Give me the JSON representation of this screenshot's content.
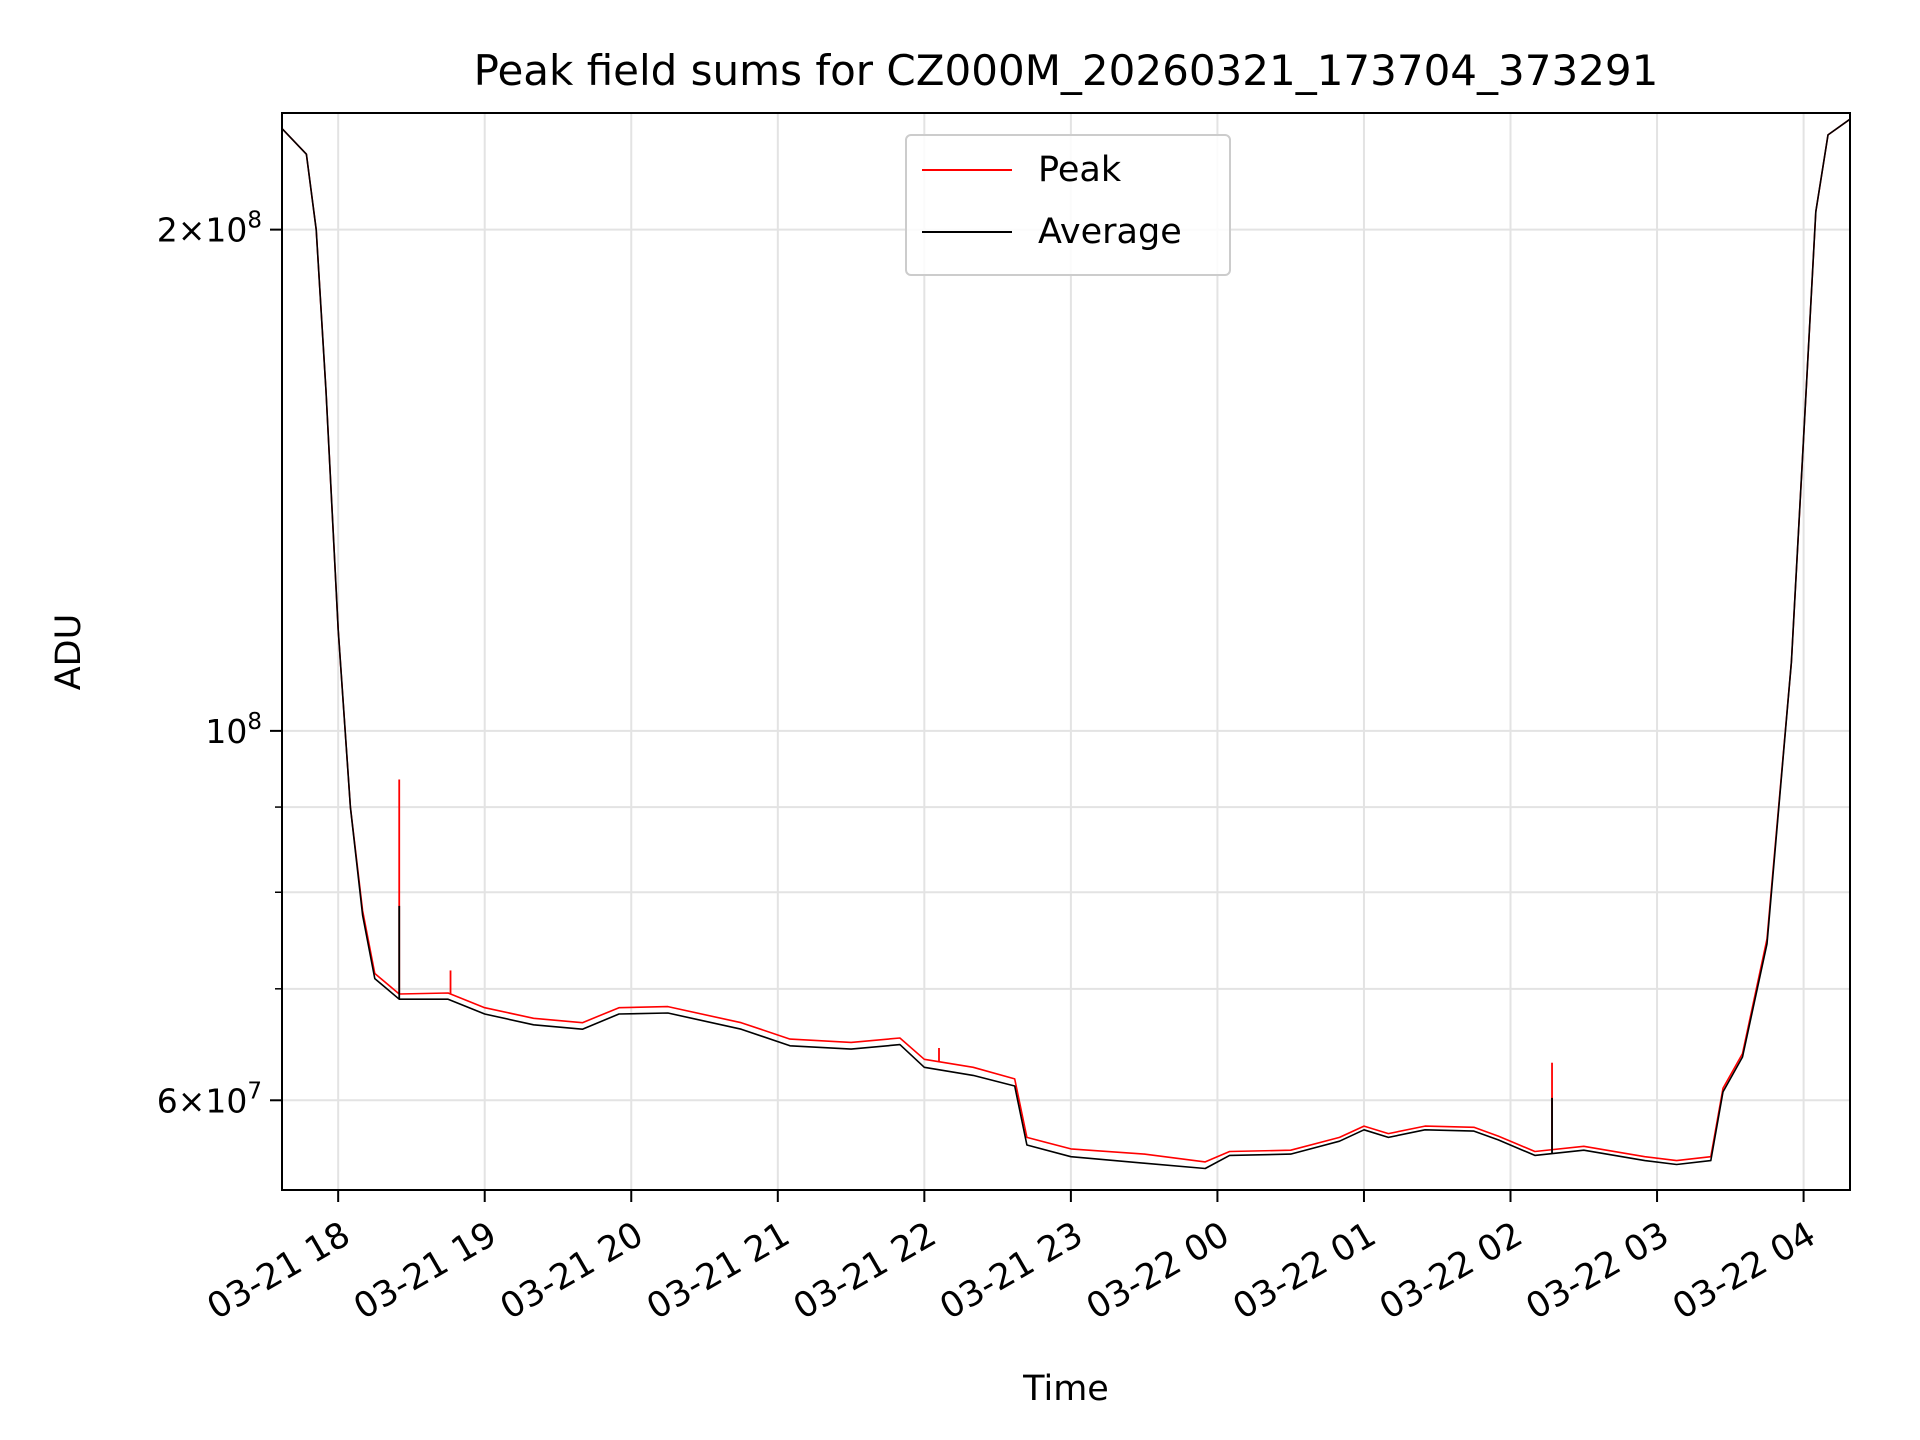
{
  "chart_data": {
    "type": "line",
    "title": "Peak field sums for CZ000M_20260321_173704_373291",
    "xlabel": "Time",
    "ylabel": "ADU",
    "y_scale": "log",
    "ylim": [
      53000000,
      235000000
    ],
    "xlim": [
      "2026-03-21 17:37",
      "2026-03-22 04:19"
    ],
    "grid": true,
    "legend_position": "upper center",
    "x_ticks": [
      {
        "t": "2026-03-21 18:00",
        "label": "03-21 18"
      },
      {
        "t": "2026-03-21 19:00",
        "label": "03-21 19"
      },
      {
        "t": "2026-03-21 20:00",
        "label": "03-21 20"
      },
      {
        "t": "2026-03-21 21:00",
        "label": "03-21 21"
      },
      {
        "t": "2026-03-21 22:00",
        "label": "03-21 22"
      },
      {
        "t": "2026-03-21 23:00",
        "label": "03-21 23"
      },
      {
        "t": "2026-03-22 00:00",
        "label": "03-22 00"
      },
      {
        "t": "2026-03-22 01:00",
        "label": "03-22 01"
      },
      {
        "t": "2026-03-22 02:00",
        "label": "03-22 02"
      },
      {
        "t": "2026-03-22 03:00",
        "label": "03-22 03"
      },
      {
        "t": "2026-03-22 04:00",
        "label": "03-22 04"
      }
    ],
    "y_ticks": [
      {
        "value": 200000000,
        "base": "2×10",
        "exp": "8"
      },
      {
        "value": 100000000,
        "base": "10",
        "exp": "8"
      },
      {
        "value": 60000000,
        "base": "6×10",
        "exp": "7"
      }
    ],
    "y_minor": [
      70000000,
      80000000,
      90000000
    ],
    "series": [
      {
        "name": "Peak",
        "color": "#ff0000",
        "points": [
          [
            "2026-03-21 17:37",
            230000000
          ],
          [
            "2026-03-21 17:47",
            222000000
          ],
          [
            "2026-03-21 17:51",
            200000000
          ],
          [
            "2026-03-21 17:55",
            160000000
          ],
          [
            "2026-03-21 18:00",
            115000000
          ],
          [
            "2026-03-21 18:05",
            90000000
          ],
          [
            "2026-03-21 18:10",
            78000000
          ],
          [
            "2026-03-21 18:15",
            71500000
          ],
          [
            "2026-03-21 18:25",
            69500000
          ],
          [
            "2026-03-21 18:45",
            69600000
          ],
          [
            "2026-03-21 19:00",
            68200000
          ],
          [
            "2026-03-21 19:20",
            67200000
          ],
          [
            "2026-03-21 19:40",
            66800000
          ],
          [
            "2026-03-21 19:55",
            68200000
          ],
          [
            "2026-03-21 20:15",
            68300000
          ],
          [
            "2026-03-21 20:45",
            66800000
          ],
          [
            "2026-03-21 21:05",
            65300000
          ],
          [
            "2026-03-21 21:30",
            65000000
          ],
          [
            "2026-03-21 21:50",
            65400000
          ],
          [
            "2026-03-21 22:00",
            63500000
          ],
          [
            "2026-03-21 22:20",
            62800000
          ],
          [
            "2026-03-21 22:37",
            61800000
          ],
          [
            "2026-03-21 22:42",
            57000000
          ],
          [
            "2026-03-21 23:00",
            56100000
          ],
          [
            "2026-03-21 23:30",
            55700000
          ],
          [
            "2026-03-21 23:55",
            55100000
          ],
          [
            "2026-03-22 00:05",
            55900000
          ],
          [
            "2026-03-22 00:30",
            56000000
          ],
          [
            "2026-03-22 00:50",
            57000000
          ],
          [
            "2026-03-22 01:00",
            57900000
          ],
          [
            "2026-03-22 01:10",
            57300000
          ],
          [
            "2026-03-22 01:25",
            57900000
          ],
          [
            "2026-03-22 01:45",
            57800000
          ],
          [
            "2026-03-22 01:55",
            57100000
          ],
          [
            "2026-03-22 02:10",
            55900000
          ],
          [
            "2026-03-22 02:30",
            56300000
          ],
          [
            "2026-03-22 02:55",
            55500000
          ],
          [
            "2026-03-22 03:08",
            55200000
          ],
          [
            "2026-03-22 03:22",
            55500000
          ],
          [
            "2026-03-22 03:27",
            61000000
          ],
          [
            "2026-03-22 03:35",
            64000000
          ],
          [
            "2026-03-22 03:45",
            75000000
          ],
          [
            "2026-03-22 03:55",
            110000000
          ],
          [
            "2026-03-22 04:00",
            150000000
          ],
          [
            "2026-03-22 04:05",
            205000000
          ],
          [
            "2026-03-22 04:10",
            228000000
          ],
          [
            "2026-03-22 04:19",
            233000000
          ]
        ],
        "spikes": [
          [
            "2026-03-21 18:25",
            93500000
          ],
          [
            "2026-03-21 18:46",
            71800000
          ],
          [
            "2026-03-21 22:06",
            64500000
          ],
          [
            "2026-03-22 02:17",
            63200000
          ]
        ]
      },
      {
        "name": "Average",
        "color": "#000000",
        "points": [
          [
            "2026-03-21 17:37",
            230000000
          ],
          [
            "2026-03-21 17:47",
            222000000
          ],
          [
            "2026-03-21 17:51",
            200000000
          ],
          [
            "2026-03-21 17:55",
            160000000
          ],
          [
            "2026-03-21 18:00",
            115000000
          ],
          [
            "2026-03-21 18:05",
            90000000
          ],
          [
            "2026-03-21 18:10",
            77500000
          ],
          [
            "2026-03-21 18:15",
            71000000
          ],
          [
            "2026-03-21 18:25",
            69000000
          ],
          [
            "2026-03-21 18:45",
            69000000
          ],
          [
            "2026-03-21 19:00",
            67600000
          ],
          [
            "2026-03-21 19:20",
            66600000
          ],
          [
            "2026-03-21 19:40",
            66200000
          ],
          [
            "2026-03-21 19:55",
            67600000
          ],
          [
            "2026-03-21 20:15",
            67700000
          ],
          [
            "2026-03-21 20:45",
            66200000
          ],
          [
            "2026-03-21 21:05",
            64700000
          ],
          [
            "2026-03-21 21:30",
            64400000
          ],
          [
            "2026-03-21 21:50",
            64800000
          ],
          [
            "2026-03-21 22:00",
            62800000
          ],
          [
            "2026-03-21 22:20",
            62100000
          ],
          [
            "2026-03-21 22:37",
            61200000
          ],
          [
            "2026-03-21 22:42",
            56400000
          ],
          [
            "2026-03-21 23:00",
            55500000
          ],
          [
            "2026-03-21 23:30",
            55000000
          ],
          [
            "2026-03-21 23:55",
            54600000
          ],
          [
            "2026-03-22 00:05",
            55600000
          ],
          [
            "2026-03-22 00:30",
            55700000
          ],
          [
            "2026-03-22 00:50",
            56700000
          ],
          [
            "2026-03-22 01:00",
            57600000
          ],
          [
            "2026-03-22 01:10",
            57000000
          ],
          [
            "2026-03-22 01:25",
            57600000
          ],
          [
            "2026-03-22 01:45",
            57500000
          ],
          [
            "2026-03-22 01:55",
            56800000
          ],
          [
            "2026-03-22 02:10",
            55600000
          ],
          [
            "2026-03-22 02:30",
            56000000
          ],
          [
            "2026-03-22 02:55",
            55200000
          ],
          [
            "2026-03-22 03:08",
            54900000
          ],
          [
            "2026-03-22 03:22",
            55200000
          ],
          [
            "2026-03-22 03:27",
            60700000
          ],
          [
            "2026-03-22 03:35",
            63700000
          ],
          [
            "2026-03-22 03:45",
            74500000
          ],
          [
            "2026-03-22 03:55",
            110000000
          ],
          [
            "2026-03-22 04:00",
            150000000
          ],
          [
            "2026-03-22 04:05",
            205000000
          ],
          [
            "2026-03-22 04:10",
            228000000
          ],
          [
            "2026-03-22 04:19",
            233000000
          ]
        ],
        "spikes": [
          [
            "2026-03-21 18:25",
            78500000
          ],
          [
            "2026-03-22 02:17",
            60200000
          ]
        ]
      }
    ]
  }
}
